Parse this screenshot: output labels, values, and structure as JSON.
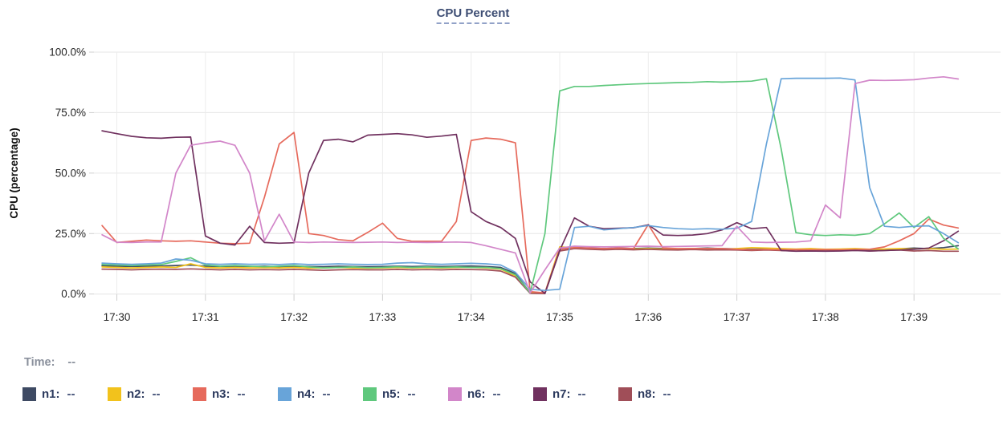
{
  "title": "CPU Percent",
  "time": {
    "label": "Time:",
    "value": "--"
  },
  "legend": {
    "items": [
      {
        "name": "n1",
        "label": "n1:",
        "value": "--",
        "color": "#3e4a63"
      },
      {
        "name": "n2",
        "label": "n2:",
        "value": "--",
        "color": "#f2c21c"
      },
      {
        "name": "n3",
        "label": "n3:",
        "value": "--",
        "color": "#e66a5c"
      },
      {
        "name": "n4",
        "label": "n4:",
        "value": "--",
        "color": "#68a4d9"
      },
      {
        "name": "n5",
        "label": "n5:",
        "value": "--",
        "color": "#5fc87d"
      },
      {
        "name": "n6",
        "label": "n6:",
        "value": "--",
        "color": "#d286c9"
      },
      {
        "name": "n7",
        "label": "n7:",
        "value": "--",
        "color": "#70315f"
      },
      {
        "name": "n8",
        "label": "n8:",
        "value": "--",
        "color": "#a04e58"
      }
    ]
  },
  "chart_data": {
    "type": "line",
    "title": "CPU Percent",
    "ylabel": "CPU (percentage)",
    "ylim": [
      0,
      100
    ],
    "grid": true,
    "legend_position": "bottom",
    "y_ticks": [
      {
        "value": 0,
        "label": "0.0%"
      },
      {
        "value": 25,
        "label": "25.0%"
      },
      {
        "value": 50,
        "label": "50.0%"
      },
      {
        "value": 75,
        "label": "75.0%"
      },
      {
        "value": 100,
        "label": "100.0%"
      }
    ],
    "x_start": "17:29:50",
    "x_step_seconds": 10,
    "x_tick_labels": [
      "17:30",
      "17:31",
      "17:32",
      "17:33",
      "17:34",
      "17:35",
      "17:36",
      "17:37",
      "17:38",
      "17:39"
    ],
    "x_tick_sample_indices": [
      1,
      7,
      13,
      19,
      25,
      31,
      37,
      43,
      49,
      55
    ],
    "series": [
      {
        "name": "n1",
        "color": "#3e4a63",
        "values": [
          11.7,
          11.5,
          11.4,
          11.5,
          11.6,
          11.8,
          12,
          11.5,
          11.4,
          11.5,
          11.4,
          11.5,
          11.3,
          11.5,
          11.4,
          11.3,
          11.5,
          11.4,
          11.3,
          11.4,
          11.5,
          11.4,
          11.5,
          11.4,
          11.5,
          11.6,
          11.4,
          11,
          8.5,
          0.5,
          0.3,
          18.5,
          19.3,
          19,
          18.8,
          19,
          18.8,
          19,
          18.8,
          18.7,
          18.8,
          19,
          18.8,
          18.7,
          18.5,
          18.6,
          18.5,
          18.4,
          18.5,
          18.3,
          18.5,
          18.6,
          18.4,
          18.5,
          18.7,
          19,
          18.8,
          19.2,
          20
        ]
      },
      {
        "name": "n2",
        "color": "#f2c21c",
        "values": [
          11.2,
          11,
          10.8,
          11,
          11.2,
          11,
          12.5,
          11,
          10.8,
          11,
          10.8,
          10.9,
          10.8,
          11,
          10.7,
          10.8,
          11,
          10.8,
          10.7,
          10.8,
          11,
          10.8,
          10.9,
          10.8,
          11,
          11,
          10.8,
          10.3,
          7.5,
          0.5,
          0.5,
          19.5,
          19.2,
          18.8,
          18.6,
          18.8,
          18.6,
          18.8,
          18.6,
          18.5,
          18.8,
          18.6,
          18.5,
          18.8,
          19.2,
          19,
          18.8,
          18.6,
          18.8,
          18.5,
          18.6,
          18.8,
          18.5,
          18.6,
          18.8,
          18.6,
          18.8,
          18.5,
          18.6
        ]
      },
      {
        "name": "n3",
        "color": "#e66a5c",
        "values": [
          28.3,
          21.3,
          21.8,
          22.3,
          22,
          21.8,
          22,
          21.5,
          21,
          20.8,
          21,
          40,
          62,
          66.8,
          25,
          24.2,
          22.5,
          22,
          25.5,
          29.3,
          23,
          21.8,
          21.8,
          21.8,
          30,
          63.5,
          64.5,
          64,
          62.5,
          1,
          0.5,
          18.5,
          19.2,
          19,
          18.8,
          19,
          18.8,
          28.7,
          19,
          18.8,
          18.8,
          18.8,
          18.8,
          18.5,
          18.3,
          18.4,
          18.3,
          18.4,
          18.3,
          18.4,
          18.3,
          18.4,
          18.5,
          19.5,
          22,
          25,
          31,
          28.5,
          27.3
        ]
      },
      {
        "name": "n4",
        "color": "#68a4d9",
        "values": [
          12.8,
          12.5,
          12.3,
          12.5,
          12.8,
          14.5,
          14,
          12.5,
          12.3,
          12.5,
          12.3,
          12.4,
          12.2,
          12.5,
          12.2,
          12.3,
          12.5,
          12.3,
          12.2,
          12.3,
          12.8,
          13,
          12.5,
          12.3,
          12.5,
          12.7,
          12.5,
          12,
          9,
          2,
          1.5,
          2,
          27.5,
          28,
          26.5,
          27,
          27.5,
          28.3,
          27.5,
          27,
          26.8,
          27,
          26.8,
          27.2,
          30,
          62,
          89,
          89.2,
          89.2,
          89.2,
          89.3,
          88.5,
          44,
          28,
          27.5,
          28,
          28.2,
          25,
          21.2
        ]
      },
      {
        "name": "n5",
        "color": "#5fc87d",
        "values": [
          12.2,
          12,
          11.8,
          12,
          12.2,
          13.5,
          15,
          12,
          11.5,
          11.8,
          11.5,
          11.3,
          11.5,
          11.8,
          11.2,
          10.8,
          11,
          11.2,
          10.9,
          11,
          11.3,
          11,
          11.2,
          11,
          11.2,
          11,
          11,
          10.5,
          8,
          0.5,
          25,
          84,
          85.8,
          85.8,
          86.2,
          86.5,
          86.8,
          87,
          87.2,
          87.4,
          87.5,
          87.8,
          87.6,
          87.8,
          88,
          89,
          60,
          25.4,
          24.5,
          24.2,
          24.5,
          24.3,
          25,
          29,
          33.5,
          27.5,
          32,
          23,
          18.7
        ]
      },
      {
        "name": "n6",
        "color": "#d286c9",
        "values": [
          24.5,
          21.4,
          21.3,
          21.5,
          21.5,
          50,
          61.5,
          62.5,
          63.2,
          61.5,
          50,
          22,
          33,
          21.5,
          21.3,
          21.5,
          21.4,
          21.3,
          21.4,
          21.5,
          21.3,
          21.4,
          21.3,
          21.4,
          21.5,
          21.3,
          20,
          18.5,
          17,
          0.5,
          10,
          19,
          19.8,
          19.6,
          19.5,
          19.6,
          19.7,
          19.8,
          19.6,
          19.7,
          19.8,
          19.9,
          20,
          28,
          21.5,
          21.3,
          21.4,
          21.5,
          22,
          36.8,
          31.5,
          87,
          88.4,
          88.3,
          88.4,
          88.6,
          89.3,
          89.8,
          88.9
        ]
      },
      {
        "name": "n7",
        "color": "#70315f",
        "values": [
          67.5,
          66.3,
          65.2,
          64.6,
          64.4,
          64.8,
          64.9,
          24,
          21,
          20.3,
          28,
          21.3,
          21,
          21.2,
          50,
          63.5,
          64,
          62.9,
          65.7,
          66,
          66.3,
          65.8,
          64.8,
          65.3,
          66,
          34,
          30,
          27.5,
          23,
          5,
          0.3,
          18,
          31.5,
          28,
          27,
          27.2,
          27.4,
          28.6,
          24.4,
          24.2,
          24.4,
          25,
          26.5,
          29.5,
          27,
          27.5,
          18,
          17.7,
          17.8,
          17.7,
          17.8,
          18,
          17.8,
          18,
          18.2,
          18.5,
          19,
          22,
          26
        ]
      },
      {
        "name": "n8",
        "color": "#a04e58",
        "values": [
          10.3,
          10.2,
          10,
          10.2,
          10.3,
          10.2,
          10.4,
          10.2,
          10,
          10.2,
          10,
          10.1,
          10,
          10.2,
          10,
          9.8,
          10,
          10.1,
          10,
          10,
          10.2,
          10,
          10.1,
          10,
          10.2,
          10.1,
          10,
          9.5,
          7,
          0.3,
          0.2,
          17.8,
          18.8,
          18.5,
          18.3,
          18.5,
          18.3,
          18.5,
          18.3,
          18.2,
          18.4,
          18.2,
          18.3,
          18.2,
          18,
          18.2,
          18,
          17.8,
          18,
          17.8,
          18,
          18.2,
          17.8,
          18,
          18.2,
          17.8,
          18,
          17.7,
          17.7
        ]
      }
    ]
  }
}
